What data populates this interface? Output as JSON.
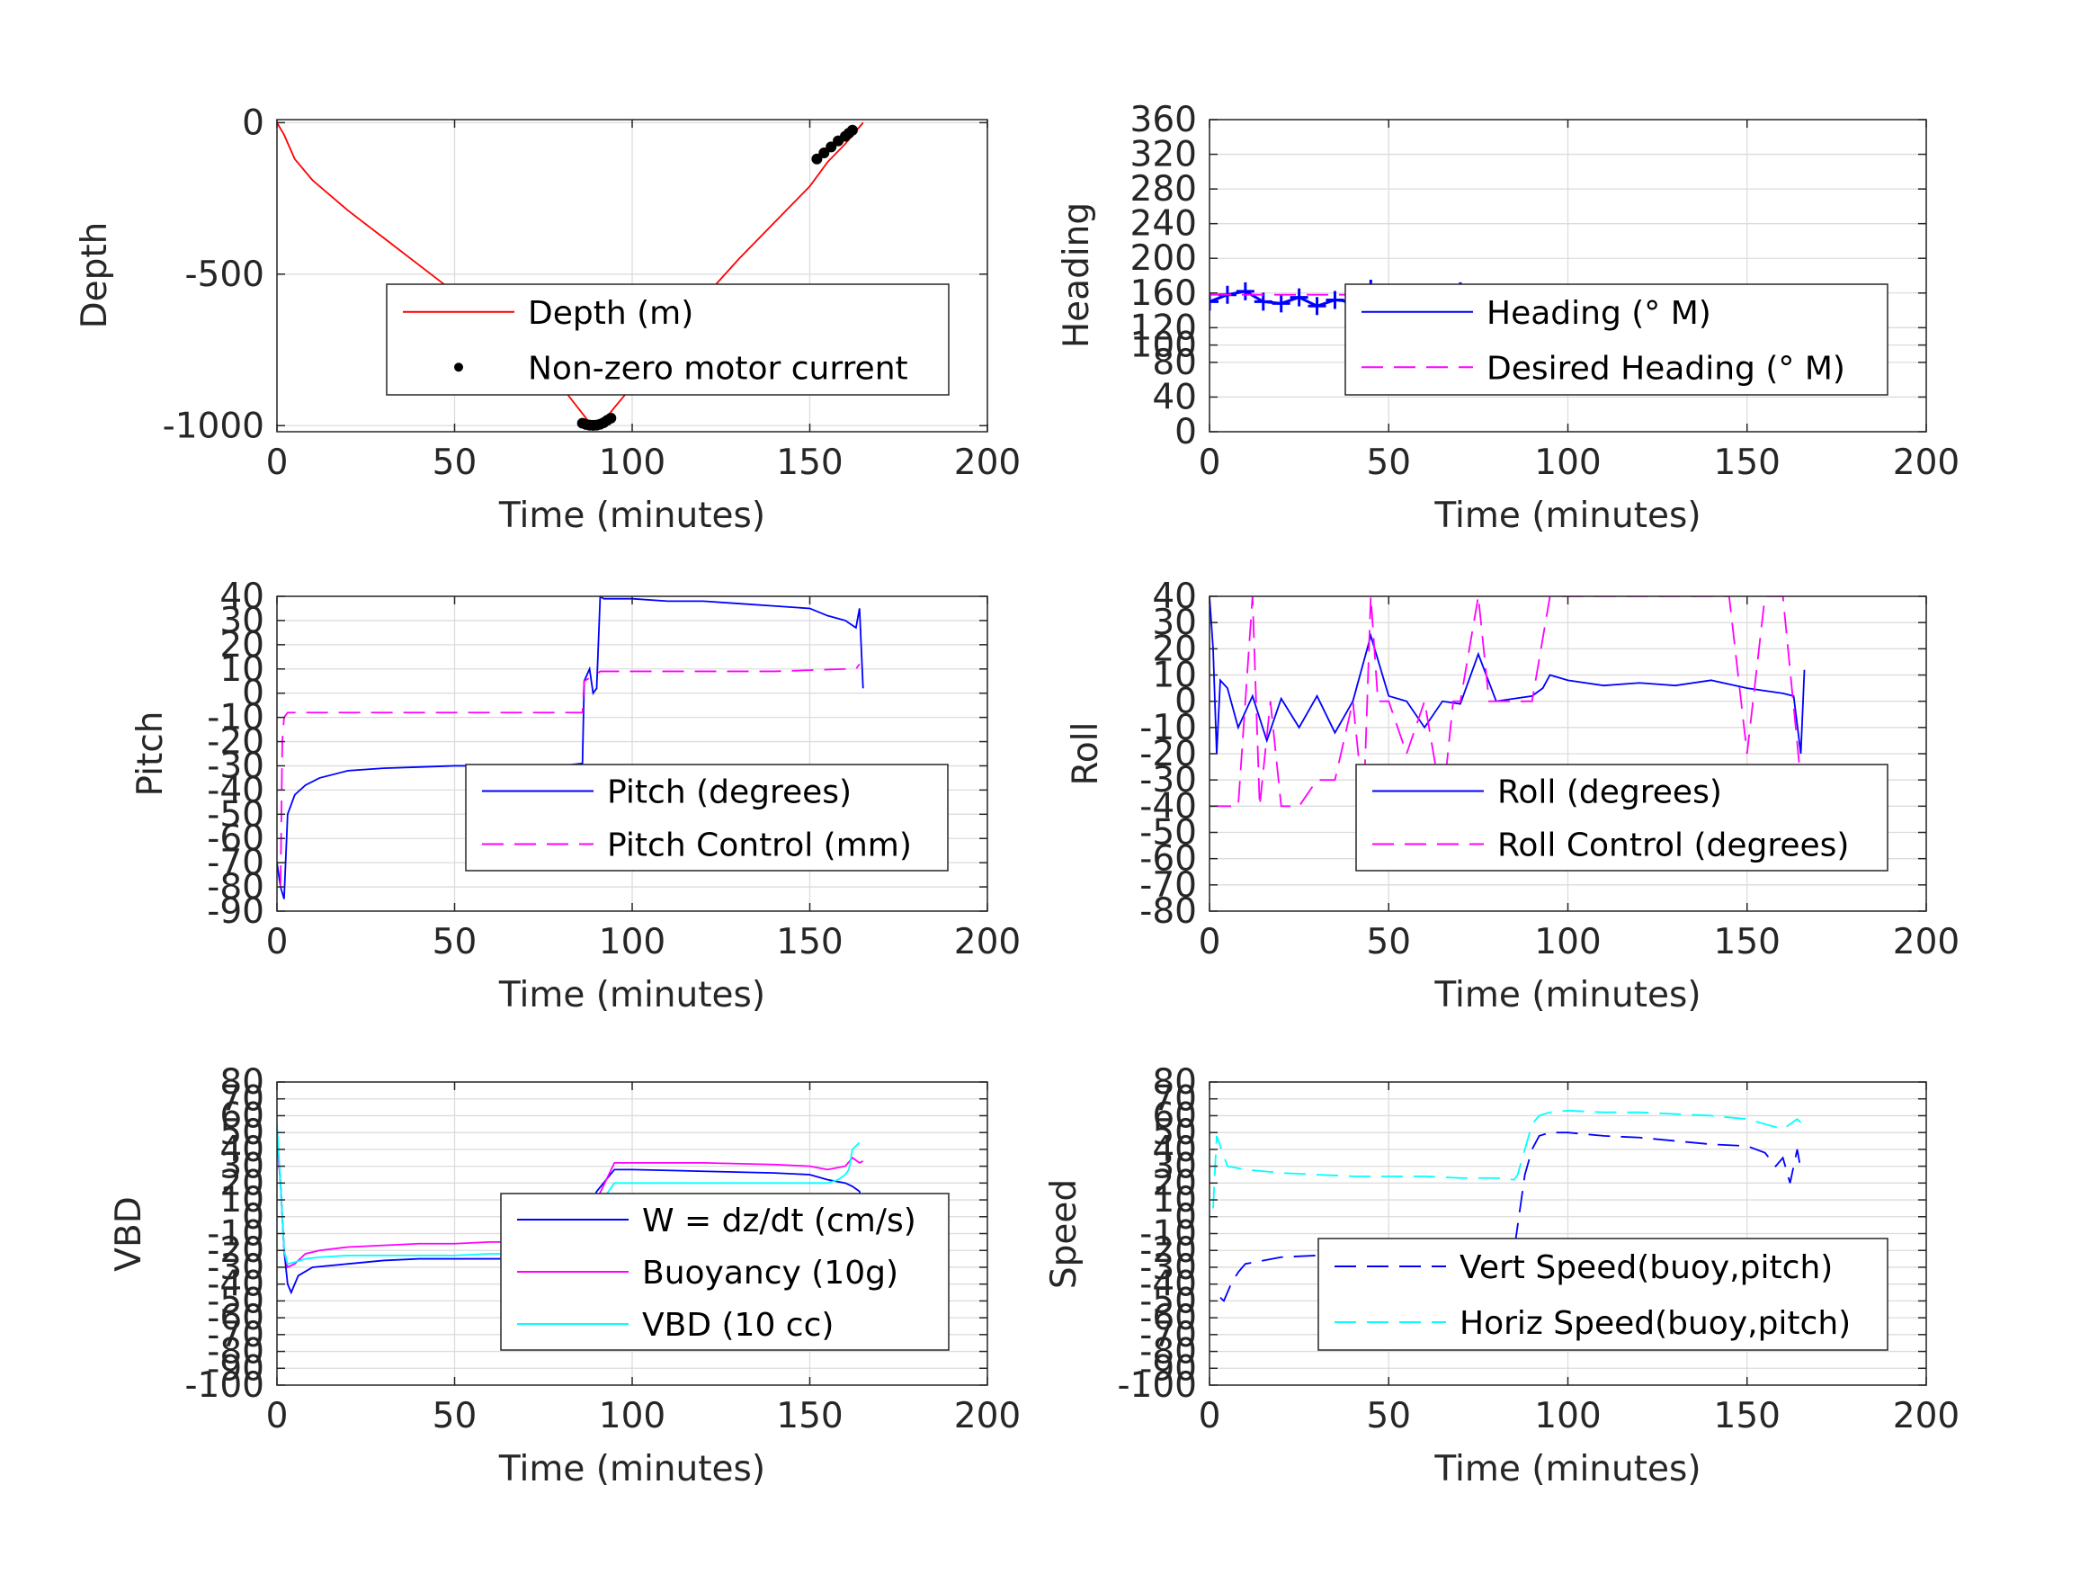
{
  "chart_data": [
    {
      "type": "line",
      "xlabel": "Time (minutes)",
      "ylabel": "Depth",
      "xlim": [
        0,
        200
      ],
      "ylim": [
        -1020,
        10
      ],
      "xticks": [
        0,
        50,
        100,
        150,
        200
      ],
      "yticks": [
        -1000,
        -500,
        0
      ],
      "ytick_labels": [
        "-1000",
        "-500",
        "0"
      ],
      "grid": true,
      "legend_position": "lower-right",
      "series": [
        {
          "name": "Depth (m)",
          "color": "#ff0000",
          "style": "solid",
          "x": [
            0,
            2,
            5,
            10,
            20,
            30,
            40,
            50,
            60,
            70,
            80,
            88,
            92,
            95,
            100,
            110,
            120,
            130,
            140,
            150,
            155,
            160,
            165
          ],
          "y": [
            0,
            -40,
            -120,
            -190,
            -290,
            -380,
            -470,
            -560,
            -660,
            -760,
            -870,
            -990,
            -985,
            -940,
            -870,
            -730,
            -580,
            -450,
            -330,
            -210,
            -130,
            -70,
            0
          ]
        },
        {
          "name": "Non-zero motor current",
          "color": "#000000",
          "style": "dots",
          "x": [
            86,
            87,
            88,
            89,
            90,
            91,
            92,
            93,
            94,
            152,
            154,
            156,
            158,
            160,
            161,
            162
          ],
          "y": [
            -992,
            -996,
            -998,
            -999,
            -998,
            -995,
            -990,
            -982,
            -975,
            -120,
            -100,
            -80,
            -60,
            -45,
            -35,
            -25
          ]
        }
      ]
    },
    {
      "type": "line",
      "xlabel": "Time (minutes)",
      "ylabel": "Heading",
      "xlim": [
        0,
        200
      ],
      "ylim": [
        0,
        360
      ],
      "xticks": [
        0,
        50,
        100,
        150,
        200
      ],
      "yticks": [
        0,
        40,
        80,
        100,
        120,
        160,
        200,
        240,
        280,
        320,
        360
      ],
      "ytick_labels": [
        "0",
        "40",
        "80",
        "100",
        "120",
        "160",
        "200",
        "240",
        "280",
        "320",
        "360"
      ],
      "grid": true,
      "legend_position": "lower-right",
      "series": [
        {
          "name": "Heading (° M)",
          "color": "#0000ff",
          "style": "plus-markers",
          "x": [
            0,
            5,
            10,
            15,
            20,
            25,
            30,
            35,
            40,
            45,
            50,
            55,
            60,
            65,
            70,
            75,
            80,
            85,
            90,
            95,
            100,
            105,
            110,
            115,
            120,
            125,
            130,
            135,
            140,
            145,
            150,
            155,
            160,
            165
          ],
          "y": [
            150,
            158,
            162,
            150,
            148,
            155,
            145,
            152,
            150,
            165,
            160,
            150,
            158,
            150,
            162,
            160,
            155,
            150,
            145,
            140,
            135,
            145,
            150,
            140,
            148,
            145,
            150,
            142,
            150,
            145,
            155,
            160,
            150,
            155
          ]
        },
        {
          "name": "Desired Heading (° M)",
          "color": "#ff00ff",
          "style": "dashed",
          "x": [
            0,
            50,
            100,
            165
          ],
          "y": [
            158,
            158,
            158,
            158
          ]
        }
      ]
    },
    {
      "type": "line",
      "xlabel": "Time (minutes)",
      "ylabel": "Pitch",
      "xlim": [
        0,
        200
      ],
      "ylim": [
        -90,
        40
      ],
      "xticks": [
        0,
        50,
        100,
        150,
        200
      ],
      "yticks": [
        -90,
        -80,
        -70,
        -60,
        -50,
        -40,
        -30,
        -20,
        -10,
        0,
        10,
        20,
        30,
        40
      ],
      "ytick_labels": [
        "-90",
        "-80",
        "-70",
        "-60",
        "-50",
        "-40",
        "-30",
        "-20",
        "-10",
        "0",
        "10",
        "20",
        "30",
        "40"
      ],
      "grid": true,
      "legend_position": "lower-right",
      "series": [
        {
          "name": "Pitch (degrees)",
          "color": "#0000ff",
          "style": "solid",
          "x": [
            0,
            1,
            2,
            3,
            5,
            8,
            12,
            20,
            30,
            40,
            50,
            60,
            70,
            80,
            86,
            86.5,
            88,
            89,
            90,
            91,
            92,
            100,
            110,
            120,
            130,
            140,
            150,
            155,
            160,
            163,
            164,
            165
          ],
          "y": [
            -70,
            -80,
            -85,
            -50,
            -42,
            -38,
            -35,
            -32,
            -31,
            -30.5,
            -30,
            -30,
            -30,
            -30,
            -29,
            5,
            10,
            0,
            2,
            40,
            39,
            39,
            38,
            38,
            37,
            36,
            35,
            32,
            30,
            27,
            35,
            2
          ]
        },
        {
          "name": "Pitch Control (mm)",
          "color": "#ff00ff",
          "style": "dashed",
          "x": [
            1,
            1.5,
            2,
            3,
            10,
            30,
            50,
            70,
            86,
            86.5,
            90,
            91,
            100,
            120,
            140,
            160,
            163,
            164
          ],
          "y": [
            -80,
            -20,
            -10,
            -8,
            -8,
            -8,
            -8,
            -8,
            -8,
            5,
            8,
            9,
            9,
            9,
            9,
            10,
            10,
            12
          ]
        }
      ]
    },
    {
      "type": "line",
      "xlabel": "Time (minutes)",
      "ylabel": "Roll",
      "xlim": [
        0,
        200
      ],
      "ylim": [
        -80,
        40
      ],
      "xticks": [
        0,
        50,
        100,
        150,
        200
      ],
      "yticks": [
        -80,
        -70,
        -60,
        -50,
        -40,
        -30,
        -20,
        -10,
        0,
        10,
        20,
        30,
        40
      ],
      "ytick_labels": [
        "-80",
        "-70",
        "-60",
        "-50",
        "-40",
        "-30",
        "-20",
        "-10",
        "0",
        "10",
        "20",
        "30",
        "40"
      ],
      "grid": true,
      "legend_position": "lower-right",
      "series": [
        {
          "name": "Roll (degrees)",
          "color": "#0000ff",
          "style": "solid",
          "x": [
            0,
            1,
            2,
            3,
            5,
            8,
            12,
            16,
            20,
            25,
            30,
            35,
            40,
            45,
            50,
            55,
            60,
            65,
            70,
            75,
            80,
            85,
            90,
            93,
            95,
            100,
            110,
            120,
            130,
            140,
            150,
            155,
            160,
            163,
            165,
            166
          ],
          "y": [
            40,
            20,
            -20,
            8,
            5,
            -10,
            2,
            -15,
            1,
            -10,
            2,
            -12,
            0,
            25,
            2,
            0,
            -10,
            0,
            -1,
            18,
            0,
            1,
            2,
            5,
            10,
            8,
            6,
            7,
            6,
            8,
            5,
            4,
            3,
            2,
            -20,
            12
          ]
        },
        {
          "name": "Roll Control (degrees)",
          "color": "#ff00ff",
          "style": "dashed",
          "x": [
            0,
            2,
            4,
            6,
            8,
            10,
            12,
            14,
            17,
            20,
            25,
            30,
            35,
            40,
            43,
            45,
            47,
            50,
            55,
            60,
            65,
            68,
            70,
            75,
            78,
            80,
            90,
            95,
            100,
            105,
            110,
            115,
            120,
            125,
            130,
            135,
            140,
            145,
            150,
            155,
            160,
            165
          ],
          "y": [
            -40,
            -40,
            -40,
            -40,
            -40,
            0,
            40,
            -40,
            0,
            -40,
            -40,
            -30,
            -30,
            0,
            -40,
            40,
            0,
            0,
            -20,
            0,
            -40,
            0,
            0,
            40,
            0,
            0,
            0,
            40,
            40,
            40,
            40,
            40,
            40,
            40,
            40,
            40,
            40,
            40,
            -20,
            40,
            40,
            -30
          ]
        }
      ]
    },
    {
      "type": "line",
      "xlabel": "Time (minutes)",
      "ylabel": "VBD",
      "xlim": [
        0,
        200
      ],
      "ylim": [
        -100,
        80
      ],
      "xticks": [
        0,
        50,
        100,
        150,
        200
      ],
      "yticks": [
        -100,
        -90,
        -80,
        -70,
        -60,
        -50,
        -40,
        -30,
        -20,
        -10,
        0,
        10,
        20,
        30,
        40,
        50,
        60,
        70,
        80
      ],
      "ytick_labels": [
        "-100",
        "-90",
        "-80",
        "-70",
        "-60",
        "-50",
        "-40",
        "-30",
        "-20",
        "-10",
        "0",
        "10",
        "20",
        "30",
        "40",
        "50",
        "60",
        "70",
        "80"
      ],
      "grid": true,
      "legend_position": "lower-right",
      "series": [
        {
          "name": "W = dz/dt (cm/s)",
          "color": "#0000ff",
          "style": "solid",
          "x": [
            0,
            1,
            2,
            3,
            4,
            6,
            10,
            20,
            30,
            40,
            50,
            60,
            70,
            80,
            85,
            86,
            88,
            90,
            95,
            100,
            120,
            140,
            150,
            155,
            160,
            162,
            164,
            165
          ],
          "y": [
            50,
            20,
            -20,
            -40,
            -45,
            -35,
            -30,
            -28,
            -26,
            -25,
            -25,
            -25,
            -25,
            -25,
            -24,
            -20,
            5,
            15,
            28,
            28,
            27,
            26,
            25,
            22,
            20,
            18,
            15,
            0
          ]
        },
        {
          "name": "Buoyancy (10g)",
          "color": "#ff00ff",
          "style": "solid",
          "x": [
            0,
            1,
            2,
            3,
            5,
            8,
            12,
            20,
            30,
            40,
            50,
            60,
            70,
            80,
            85,
            86,
            90,
            95,
            100,
            120,
            140,
            150,
            155,
            160,
            162,
            164,
            165
          ],
          "y": [
            45,
            20,
            -20,
            -30,
            -28,
            -22,
            -20,
            -18,
            -17,
            -16,
            -16,
            -15,
            -15,
            -15,
            -14,
            -10,
            10,
            32,
            32,
            32,
            31,
            30,
            28,
            30,
            35,
            32,
            33
          ]
        },
        {
          "name": "VBD (10 cc)",
          "color": "#00ffff",
          "style": "solid",
          "x": [
            0,
            1,
            2,
            3,
            5,
            8,
            12,
            20,
            30,
            40,
            50,
            60,
            70,
            80,
            85,
            86,
            90,
            95,
            100,
            120,
            140,
            150,
            155,
            158,
            160,
            161,
            162,
            163,
            164
          ],
          "y": [
            55,
            20,
            -20,
            -28,
            -27,
            -25,
            -24,
            -23,
            -23,
            -23,
            -23,
            -22,
            -22,
            -22,
            -21,
            -15,
            5,
            20,
            20,
            20,
            20,
            20,
            20,
            22,
            25,
            28,
            40,
            42,
            44
          ]
        }
      ]
    },
    {
      "type": "line",
      "xlabel": "Time (minutes)",
      "ylabel": "Speed",
      "xlim": [
        0,
        200
      ],
      "ylim": [
        -100,
        80
      ],
      "xticks": [
        0,
        50,
        100,
        150,
        200
      ],
      "yticks": [
        -100,
        -90,
        -80,
        -70,
        -60,
        -50,
        -40,
        -30,
        -20,
        -10,
        0,
        10,
        20,
        30,
        40,
        50,
        60,
        70,
        80
      ],
      "ytick_labels": [
        "-100",
        "-90",
        "-80",
        "-70",
        "-60",
        "-50",
        "-40",
        "-30",
        "-20",
        "-10",
        "0",
        "10",
        "20",
        "30",
        "40",
        "50",
        "60",
        "70",
        "80"
      ],
      "grid": true,
      "legend_position": "lower-right",
      "series": [
        {
          "name": "Vert Speed(buoy,pitch)",
          "color": "#0000ff",
          "style": "dashed",
          "x": [
            3,
            4,
            5,
            6,
            8,
            10,
            15,
            20,
            30,
            40,
            50,
            60,
            70,
            80,
            85,
            86,
            88,
            90,
            92,
            95,
            100,
            110,
            120,
            130,
            140,
            150,
            155,
            158,
            160,
            162,
            164,
            165
          ],
          "y": [
            -48,
            -50,
            -45,
            -40,
            -33,
            -28,
            -26,
            -24,
            -23,
            -22,
            -22,
            -21,
            -21,
            -20,
            -20,
            -5,
            25,
            40,
            48,
            50,
            50,
            48,
            47,
            45,
            43,
            42,
            38,
            30,
            35,
            20,
            40,
            28
          ]
        },
        {
          "name": "Horiz Speed(buoy,pitch)",
          "color": "#00ffff",
          "style": "dashed",
          "x": [
            1,
            2,
            3,
            5,
            10,
            20,
            30,
            40,
            50,
            60,
            70,
            80,
            85,
            86,
            88,
            90,
            92,
            95,
            100,
            110,
            120,
            130,
            140,
            150,
            155,
            160,
            162,
            164,
            165
          ],
          "y": [
            5,
            48,
            42,
            30,
            28,
            26,
            25,
            24,
            24,
            24,
            23,
            23,
            22,
            25,
            40,
            55,
            60,
            62,
            63,
            62,
            62,
            61,
            60,
            58,
            55,
            52,
            55,
            58,
            56
          ]
        }
      ]
    }
  ]
}
